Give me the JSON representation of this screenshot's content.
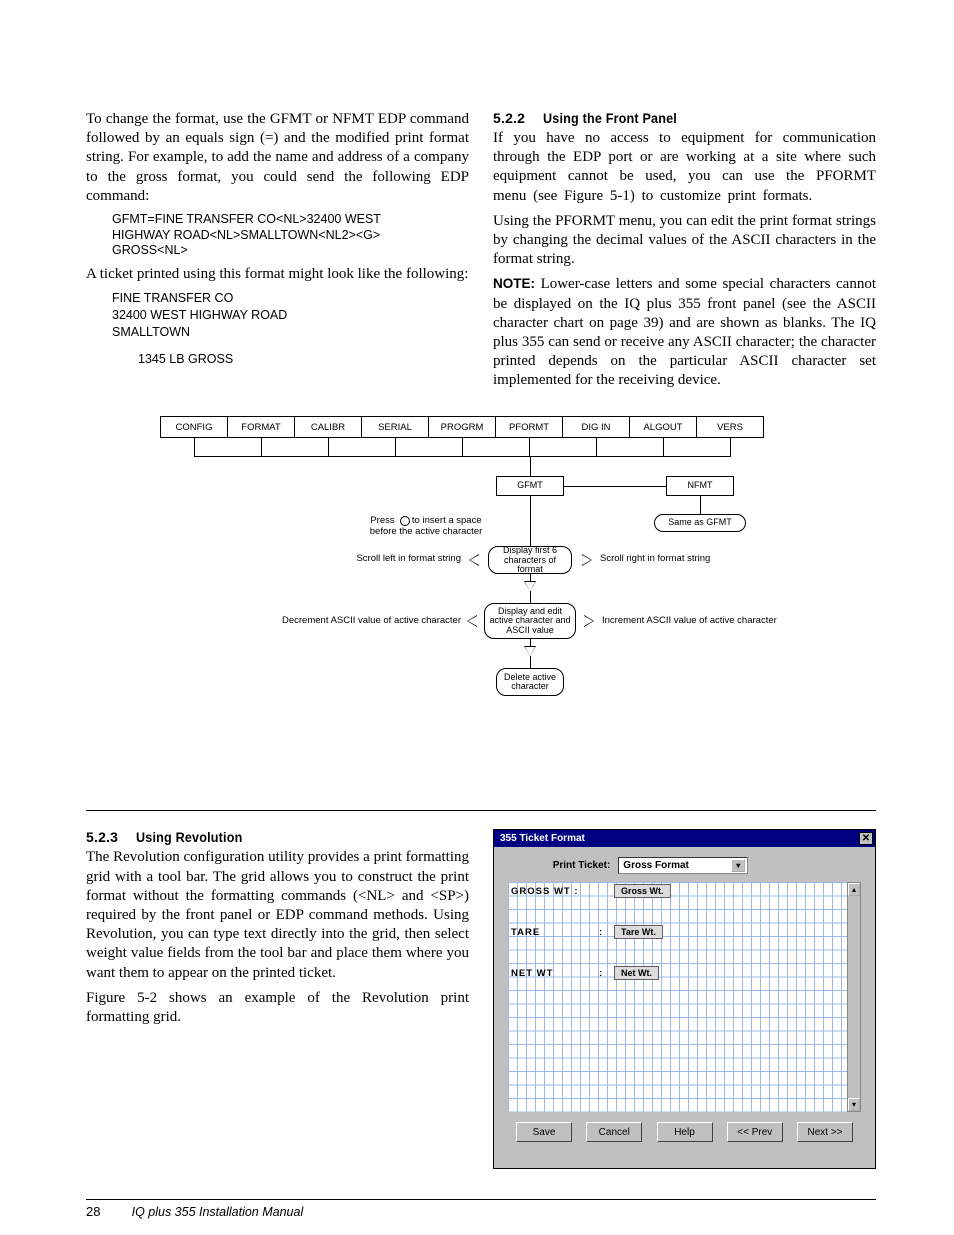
{
  "left": {
    "p1": "To change the format, use the GFMT or NFMT EDP command followed by an equals sign (=) and the modified print format string. For example, to add the name and address of a company to the gross format, you could send the following EDP command:",
    "cmd1": "GFMT=FINE TRANSFER CO<NL>32400 WEST",
    "cmd2": "HIGHWAY ROAD<NL>SMALLTOWN<NL2><G>",
    "cmd3": "GROSS<NL>",
    "p2": "A ticket printed using this format might look like the following:",
    "t1": "FINE TRANSFER CO",
    "t2": "32400 WEST HIGHWAY ROAD",
    "t3": "SMALLTOWN",
    "t4": "1345 LB GROSS"
  },
  "right": {
    "h_num": "5.2.2",
    "h_title": "Using the Front Panel",
    "p1": "If you have no access to equipment for communication through the EDP port or are working at a site where such equipment cannot be used, you can use the PFORMT menu (see Figure 5-1) to customize print formats.",
    "p2": "Using the PFORMT menu, you can edit the print format strings by changing the decimal values of the ASCII characters in the format string.",
    "note_label": "NOTE:",
    "note_body": " Lower-case letters and some special characters cannot be displayed on the IQ plus 355 front panel (see the ASCII character chart on page 39) and are shown as blanks. The IQ plus 355 can send or receive any ASCII character; the character printed depends on the particular ASCII character set implemented for the receiving device."
  },
  "menu": [
    "CONFIG",
    "FORMAT",
    "CALIBR",
    "SERIAL",
    "PROGRM",
    "PFORMT",
    "DIG IN",
    "ALGOUT",
    "VERS"
  ],
  "diagram": {
    "gfmt": "GFMT",
    "nfmt": "NFMT",
    "same": "Same as GFMT",
    "press1": "Press",
    "press2": "to insert a space",
    "press3": "before the active character",
    "scroll_l": "Scroll left in format string",
    "scroll_r": "Scroll right in format string",
    "display6a": "Display first 6",
    "display6b": "characters of format",
    "dec": "Decrement ASCII value of active character",
    "inc": "Increment ASCII value of active character",
    "edit1": "Display and edit",
    "edit2": "active character and",
    "edit3": "ASCII value",
    "del1": "Delete active",
    "del2": "character"
  },
  "rev": {
    "h_num": "5.2.3",
    "h_title": "Using Revolution",
    "p1": "The Revolution configuration utility provides a print formatting grid with a tool bar. The grid allows you to construct the print format without the formatting commands (<NL> and <SP>) required by the front panel or EDP command methods. Using Revolution, you can type text directly into the grid, then select weight value fields from the tool bar and place them where you want them to appear on the printed ticket.",
    "p2": "Figure 5-2 shows an example of the Revolution print formatting grid."
  },
  "ss": {
    "title": "355 Ticket Format",
    "pt_label": "Print Ticket:",
    "pt_value": "Gross Format",
    "g_gross": "GROSS WT",
    "g_tare": "TARE",
    "g_net": "NET WT",
    "box_gross": "Gross Wt.",
    "box_tare": "Tare Wt.",
    "box_net": "Net Wt.",
    "btns": [
      "Save",
      "Cancel",
      "Help",
      "<< Prev",
      "Next >>"
    ]
  },
  "footer": {
    "page": "28",
    "title": "IQ plus 355 Installation Manual"
  }
}
